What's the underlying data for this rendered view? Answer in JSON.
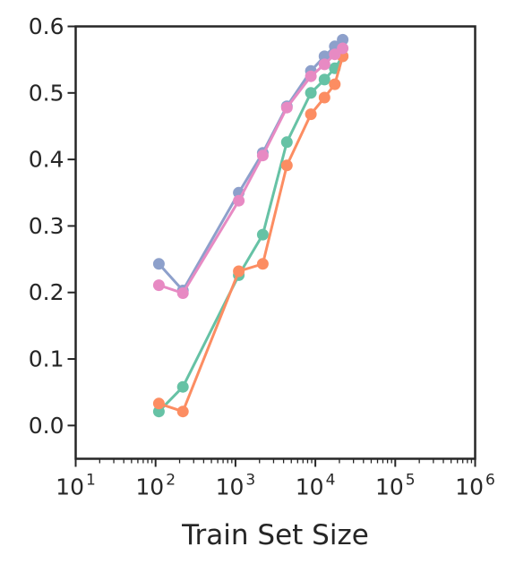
{
  "chart_data": {
    "type": "line",
    "title": "",
    "xlabel": "Train Set Size",
    "ylabel": "",
    "x_scale": "log",
    "xlim": [
      10,
      1000000
    ],
    "ylim": [
      -0.05,
      0.6
    ],
    "grid": false,
    "legend": "none",
    "x_ticks": [
      {
        "base": "10",
        "exp": "1",
        "value": 10
      },
      {
        "base": "10",
        "exp": "2",
        "value": 100
      },
      {
        "base": "10",
        "exp": "3",
        "value": 1000
      },
      {
        "base": "10",
        "exp": "4",
        "value": 10000
      },
      {
        "base": "10",
        "exp": "5",
        "value": 100000
      },
      {
        "base": "10",
        "exp": "6",
        "value": 1000000
      }
    ],
    "y_ticks": [
      {
        "label": "0.0",
        "value": 0.0
      },
      {
        "label": "0.1",
        "value": 0.1
      },
      {
        "label": "0.2",
        "value": 0.2
      },
      {
        "label": "0.3",
        "value": 0.3
      },
      {
        "label": "0.4",
        "value": 0.4
      },
      {
        "label": "0.5",
        "value": 0.5
      },
      {
        "label": "0.6",
        "value": 0.6
      }
    ],
    "series": [
      {
        "color": "#66c2a5",
        "x": [
          110,
          220,
          1100,
          2200,
          4400,
          8800,
          13000,
          17500,
          22000
        ],
        "y": [
          0.021,
          0.058,
          0.226,
          0.287,
          0.426,
          0.5,
          0.52,
          0.537,
          0.555
        ]
      },
      {
        "color": "#fc8d62",
        "x": [
          110,
          220,
          1100,
          2200,
          4400,
          8800,
          13000,
          17500,
          22000
        ],
        "y": [
          0.033,
          0.021,
          0.232,
          0.243,
          0.391,
          0.468,
          0.493,
          0.513,
          0.555
        ]
      },
      {
        "color": "#8da0cb",
        "x": [
          110,
          220,
          1100,
          2200,
          4400,
          8800,
          13000,
          17500,
          22000
        ],
        "y": [
          0.243,
          0.203,
          0.35,
          0.41,
          0.48,
          0.533,
          0.555,
          0.57,
          0.58
        ]
      },
      {
        "color": "#e78ac3",
        "x": [
          110,
          220,
          1100,
          2200,
          4400,
          8800,
          13000,
          17500,
          22000
        ],
        "y": [
          0.211,
          0.199,
          0.338,
          0.406,
          0.478,
          0.525,
          0.543,
          0.558,
          0.567
        ]
      }
    ]
  }
}
